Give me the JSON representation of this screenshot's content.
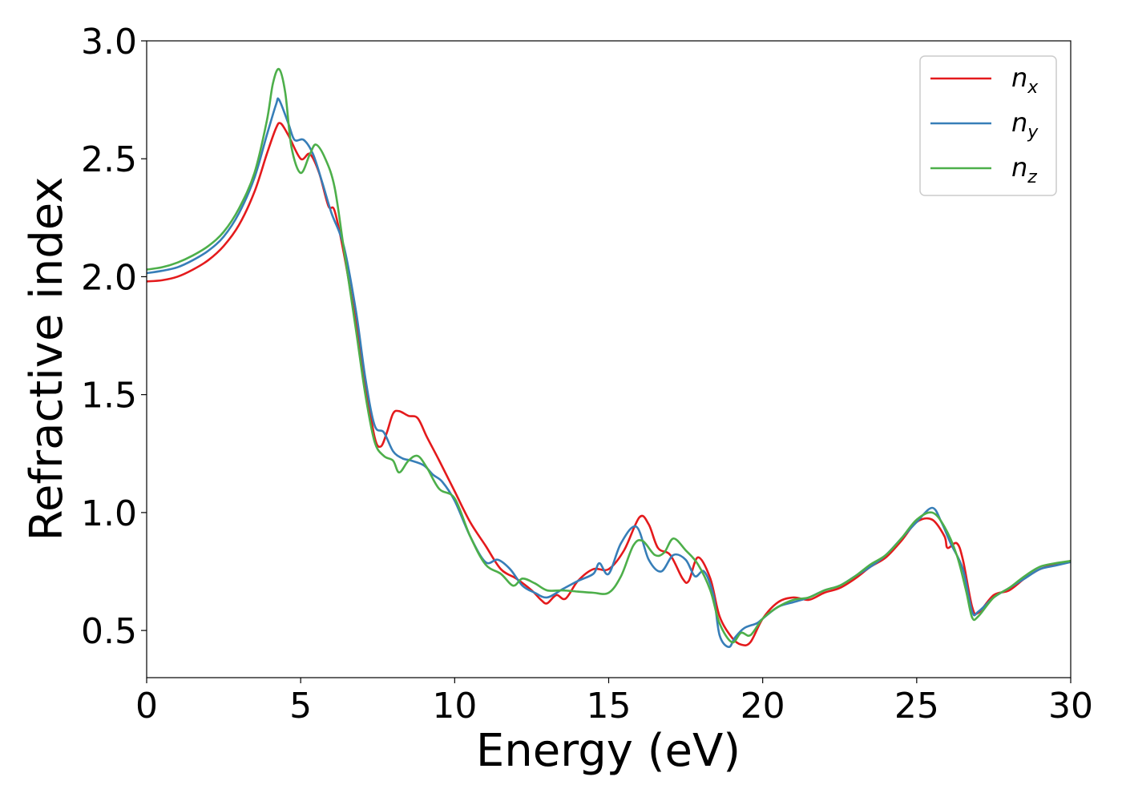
{
  "chart_data": {
    "type": "line",
    "title": "",
    "xlabel": "Energy (eV)",
    "ylabel": "Refractive index",
    "xlim": [
      0,
      30
    ],
    "ylim": [
      0.3,
      3.0
    ],
    "xticks": [
      "0",
      "5",
      "10",
      "15",
      "20",
      "25",
      "30"
    ],
    "yticks": [
      "0.5",
      "1.0",
      "1.5",
      "2.0",
      "2.5",
      "3.0"
    ],
    "grid": false,
    "legend_position": "top-right",
    "series": [
      {
        "name": "n",
        "subscript": "x",
        "color": "#e41a1c",
        "points": [
          [
            0,
            1.98
          ],
          [
            0.5,
            1.985
          ],
          [
            1,
            2.0
          ],
          [
            1.5,
            2.03
          ],
          [
            2,
            2.07
          ],
          [
            2.5,
            2.13
          ],
          [
            3,
            2.22
          ],
          [
            3.5,
            2.36
          ],
          [
            3.9,
            2.52
          ],
          [
            4.2,
            2.63
          ],
          [
            4.35,
            2.65
          ],
          [
            4.6,
            2.6
          ],
          [
            5.0,
            2.5
          ],
          [
            5.3,
            2.52
          ],
          [
            5.6,
            2.44
          ],
          [
            5.9,
            2.3
          ],
          [
            6.1,
            2.28
          ],
          [
            6.4,
            2.1
          ],
          [
            6.8,
            1.8
          ],
          [
            7.1,
            1.55
          ],
          [
            7.4,
            1.32
          ],
          [
            7.6,
            1.28
          ],
          [
            7.8,
            1.34
          ],
          [
            8.0,
            1.42
          ],
          [
            8.2,
            1.43
          ],
          [
            8.5,
            1.41
          ],
          [
            8.8,
            1.4
          ],
          [
            9.1,
            1.32
          ],
          [
            9.5,
            1.22
          ],
          [
            10.0,
            1.09
          ],
          [
            10.5,
            0.96
          ],
          [
            11.0,
            0.86
          ],
          [
            11.5,
            0.76
          ],
          [
            12.0,
            0.72
          ],
          [
            12.5,
            0.67
          ],
          [
            12.8,
            0.63
          ],
          [
            13.0,
            0.615
          ],
          [
            13.3,
            0.65
          ],
          [
            13.6,
            0.635
          ],
          [
            14.0,
            0.71
          ],
          [
            14.5,
            0.76
          ],
          [
            15.0,
            0.76
          ],
          [
            15.5,
            0.84
          ],
          [
            16.0,
            0.98
          ],
          [
            16.3,
            0.95
          ],
          [
            16.6,
            0.85
          ],
          [
            17.0,
            0.82
          ],
          [
            17.4,
            0.72
          ],
          [
            17.6,
            0.71
          ],
          [
            17.9,
            0.81
          ],
          [
            18.3,
            0.72
          ],
          [
            18.6,
            0.56
          ],
          [
            19.0,
            0.47
          ],
          [
            19.3,
            0.44
          ],
          [
            19.6,
            0.45
          ],
          [
            20.0,
            0.55
          ],
          [
            20.5,
            0.62
          ],
          [
            21.0,
            0.64
          ],
          [
            21.5,
            0.63
          ],
          [
            22.0,
            0.66
          ],
          [
            22.5,
            0.68
          ],
          [
            23.0,
            0.72
          ],
          [
            23.5,
            0.77
          ],
          [
            24.0,
            0.81
          ],
          [
            24.5,
            0.88
          ],
          [
            25.0,
            0.96
          ],
          [
            25.5,
            0.97
          ],
          [
            25.9,
            0.9
          ],
          [
            26.0,
            0.85
          ],
          [
            26.3,
            0.87
          ],
          [
            26.5,
            0.8
          ],
          [
            26.8,
            0.6
          ],
          [
            27.0,
            0.575
          ],
          [
            27.5,
            0.65
          ],
          [
            28.0,
            0.67
          ],
          [
            28.5,
            0.72
          ],
          [
            29.0,
            0.76
          ],
          [
            29.5,
            0.78
          ],
          [
            30,
            0.795
          ]
        ]
      },
      {
        "name": "n",
        "subscript": "y",
        "color": "#377eb8",
        "points": [
          [
            0,
            2.015
          ],
          [
            0.5,
            2.025
          ],
          [
            1,
            2.04
          ],
          [
            1.5,
            2.07
          ],
          [
            2,
            2.11
          ],
          [
            2.5,
            2.17
          ],
          [
            3,
            2.27
          ],
          [
            3.5,
            2.42
          ],
          [
            3.9,
            2.6
          ],
          [
            4.2,
            2.73
          ],
          [
            4.3,
            2.75
          ],
          [
            4.6,
            2.65
          ],
          [
            4.8,
            2.58
          ],
          [
            5.1,
            2.58
          ],
          [
            5.4,
            2.52
          ],
          [
            5.7,
            2.4
          ],
          [
            6.0,
            2.27
          ],
          [
            6.4,
            2.13
          ],
          [
            6.8,
            1.85
          ],
          [
            7.1,
            1.57
          ],
          [
            7.4,
            1.37
          ],
          [
            7.7,
            1.34
          ],
          [
            8.0,
            1.26
          ],
          [
            8.3,
            1.23
          ],
          [
            8.6,
            1.22
          ],
          [
            9.0,
            1.2
          ],
          [
            9.3,
            1.16
          ],
          [
            9.6,
            1.13
          ],
          [
            10.0,
            1.05
          ],
          [
            10.5,
            0.9
          ],
          [
            11.0,
            0.79
          ],
          [
            11.4,
            0.8
          ],
          [
            11.8,
            0.76
          ],
          [
            12.2,
            0.69
          ],
          [
            12.6,
            0.66
          ],
          [
            13.0,
            0.64
          ],
          [
            13.5,
            0.675
          ],
          [
            14.0,
            0.71
          ],
          [
            14.5,
            0.74
          ],
          [
            14.7,
            0.785
          ],
          [
            15.0,
            0.74
          ],
          [
            15.4,
            0.87
          ],
          [
            15.9,
            0.94
          ],
          [
            16.3,
            0.8
          ],
          [
            16.7,
            0.75
          ],
          [
            17.1,
            0.82
          ],
          [
            17.5,
            0.8
          ],
          [
            17.8,
            0.73
          ],
          [
            18.1,
            0.75
          ],
          [
            18.4,
            0.65
          ],
          [
            18.6,
            0.48
          ],
          [
            18.9,
            0.43
          ],
          [
            19.1,
            0.47
          ],
          [
            19.4,
            0.51
          ],
          [
            19.8,
            0.53
          ],
          [
            20.0,
            0.55
          ],
          [
            20.5,
            0.6
          ],
          [
            21.0,
            0.62
          ],
          [
            21.5,
            0.64
          ],
          [
            22.0,
            0.67
          ],
          [
            22.5,
            0.69
          ],
          [
            23.0,
            0.73
          ],
          [
            23.5,
            0.77
          ],
          [
            24.0,
            0.82
          ],
          [
            24.5,
            0.89
          ],
          [
            25.0,
            0.96
          ],
          [
            25.5,
            1.02
          ],
          [
            25.8,
            0.96
          ],
          [
            26.1,
            0.87
          ],
          [
            26.5,
            0.76
          ],
          [
            26.8,
            0.58
          ],
          [
            27.0,
            0.58
          ],
          [
            27.5,
            0.64
          ],
          [
            28.0,
            0.68
          ],
          [
            28.5,
            0.72
          ],
          [
            29.0,
            0.76
          ],
          [
            29.5,
            0.775
          ],
          [
            30,
            0.79
          ]
        ]
      },
      {
        "name": "n",
        "subscript": "z",
        "color": "#4daf4a",
        "points": [
          [
            0,
            2.03
          ],
          [
            0.5,
            2.04
          ],
          [
            1,
            2.06
          ],
          [
            1.5,
            2.09
          ],
          [
            2,
            2.13
          ],
          [
            2.5,
            2.19
          ],
          [
            3,
            2.29
          ],
          [
            3.5,
            2.44
          ],
          [
            3.9,
            2.66
          ],
          [
            4.1,
            2.82
          ],
          [
            4.3,
            2.88
          ],
          [
            4.5,
            2.78
          ],
          [
            4.7,
            2.55
          ],
          [
            5.0,
            2.44
          ],
          [
            5.3,
            2.52
          ],
          [
            5.5,
            2.56
          ],
          [
            5.8,
            2.5
          ],
          [
            6.1,
            2.38
          ],
          [
            6.4,
            2.12
          ],
          [
            6.8,
            1.77
          ],
          [
            7.1,
            1.5
          ],
          [
            7.4,
            1.3
          ],
          [
            7.7,
            1.24
          ],
          [
            8.0,
            1.22
          ],
          [
            8.2,
            1.17
          ],
          [
            8.5,
            1.22
          ],
          [
            8.8,
            1.24
          ],
          [
            9.1,
            1.19
          ],
          [
            9.5,
            1.1
          ],
          [
            10.0,
            1.06
          ],
          [
            10.5,
            0.9
          ],
          [
            11.0,
            0.78
          ],
          [
            11.5,
            0.74
          ],
          [
            11.9,
            0.69
          ],
          [
            12.2,
            0.72
          ],
          [
            12.6,
            0.7
          ],
          [
            13.0,
            0.67
          ],
          [
            13.5,
            0.67
          ],
          [
            14.0,
            0.665
          ],
          [
            14.5,
            0.66
          ],
          [
            15.0,
            0.66
          ],
          [
            15.4,
            0.73
          ],
          [
            15.8,
            0.86
          ],
          [
            16.1,
            0.88
          ],
          [
            16.5,
            0.82
          ],
          [
            16.8,
            0.83
          ],
          [
            17.1,
            0.89
          ],
          [
            17.5,
            0.84
          ],
          [
            17.9,
            0.78
          ],
          [
            18.3,
            0.67
          ],
          [
            18.6,
            0.53
          ],
          [
            19.0,
            0.45
          ],
          [
            19.3,
            0.49
          ],
          [
            19.6,
            0.48
          ],
          [
            20.0,
            0.55
          ],
          [
            20.5,
            0.6
          ],
          [
            21.0,
            0.63
          ],
          [
            21.5,
            0.64
          ],
          [
            22.0,
            0.67
          ],
          [
            22.5,
            0.69
          ],
          [
            23.0,
            0.73
          ],
          [
            23.5,
            0.78
          ],
          [
            24.0,
            0.82
          ],
          [
            24.5,
            0.89
          ],
          [
            25.0,
            0.97
          ],
          [
            25.5,
            1.0
          ],
          [
            25.9,
            0.94
          ],
          [
            26.3,
            0.82
          ],
          [
            26.6,
            0.67
          ],
          [
            26.8,
            0.555
          ],
          [
            27.0,
            0.56
          ],
          [
            27.5,
            0.64
          ],
          [
            28.0,
            0.68
          ],
          [
            28.5,
            0.73
          ],
          [
            29.0,
            0.77
          ],
          [
            29.5,
            0.785
          ],
          [
            30,
            0.795
          ]
        ]
      }
    ]
  }
}
